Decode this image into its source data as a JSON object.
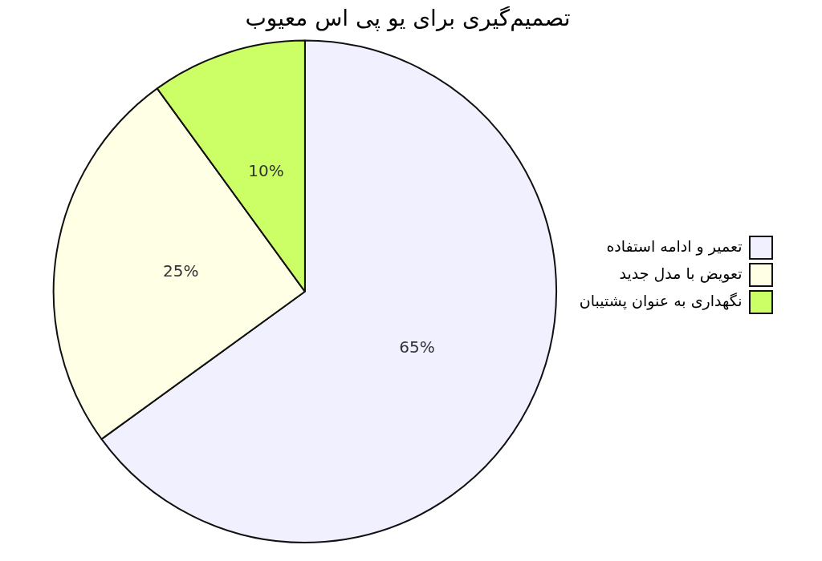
{
  "chart_data": {
    "type": "pie",
    "title": "تصمیم‌گیری برای یو پی اس معیوب",
    "categories": [
      "تعمیر و ادامه استفاده",
      "تعویض با مدل جدید",
      "نگهداری به عنوان پشتیبان"
    ],
    "values": [
      65,
      25,
      10
    ],
    "colors": [
      "#f0f0ff",
      "#ffffe6",
      "#ccff66"
    ],
    "value_labels": [
      "65%",
      "25%",
      "10%"
    ],
    "legend": "right"
  }
}
